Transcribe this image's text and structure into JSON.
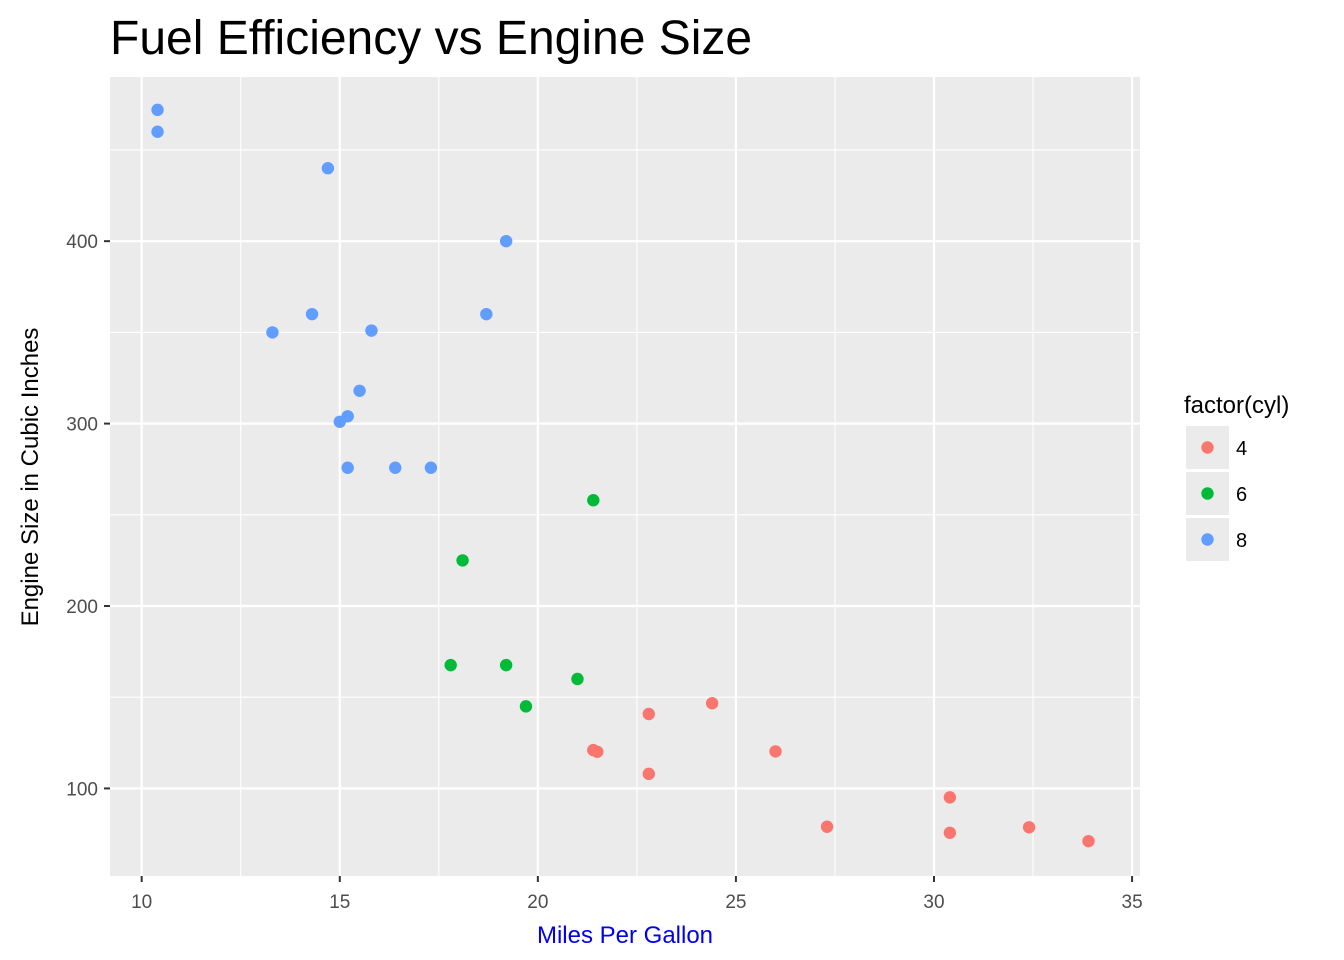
{
  "chart_data": {
    "type": "scatter",
    "title": "Fuel Efficiency vs Engine Size",
    "xlabel": "Miles Per Gallon",
    "ylabel": "Engine Size in Cubic Inches",
    "xlim": [
      9.2,
      35.2
    ],
    "ylim": [
      52,
      490
    ],
    "x_ticks": [
      10,
      15,
      20,
      25,
      30,
      35
    ],
    "y_ticks": [
      100,
      200,
      300,
      400
    ],
    "grid": true,
    "legend_position": "right",
    "legend_title": "factor(cyl)",
    "colors": {
      "panel": "#ebebeb",
      "grid": "#ffffff",
      "xlabel": "#0000ee",
      "ylabel": "#000000"
    },
    "series": [
      {
        "name": "4",
        "color": "#f8766d",
        "points": [
          [
            22.8,
            108
          ],
          [
            24.4,
            146.7
          ],
          [
            22.8,
            140.8
          ],
          [
            32.4,
            78.7
          ],
          [
            30.4,
            75.7
          ],
          [
            33.9,
            71.1
          ],
          [
            21.5,
            120.1
          ],
          [
            27.3,
            79
          ],
          [
            26.0,
            120.3
          ],
          [
            30.4,
            95.1
          ],
          [
            21.4,
            121
          ]
        ]
      },
      {
        "name": "6",
        "color": "#00ba38",
        "points": [
          [
            21.0,
            160
          ],
          [
            21.4,
            258
          ],
          [
            18.1,
            225
          ],
          [
            19.2,
            167.6
          ],
          [
            17.8,
            167.6
          ],
          [
            19.7,
            145
          ]
        ]
      },
      {
        "name": "8",
        "color": "#619cff",
        "points": [
          [
            18.7,
            360
          ],
          [
            14.3,
            360
          ],
          [
            16.4,
            275.8
          ],
          [
            17.3,
            275.8
          ],
          [
            15.2,
            275.8
          ],
          [
            10.4,
            472
          ],
          [
            10.4,
            460
          ],
          [
            14.7,
            440
          ],
          [
            15.5,
            318
          ],
          [
            15.2,
            304
          ],
          [
            13.3,
            350
          ],
          [
            19.2,
            400
          ],
          [
            15.8,
            351
          ],
          [
            15.0,
            301
          ]
        ]
      }
    ]
  }
}
